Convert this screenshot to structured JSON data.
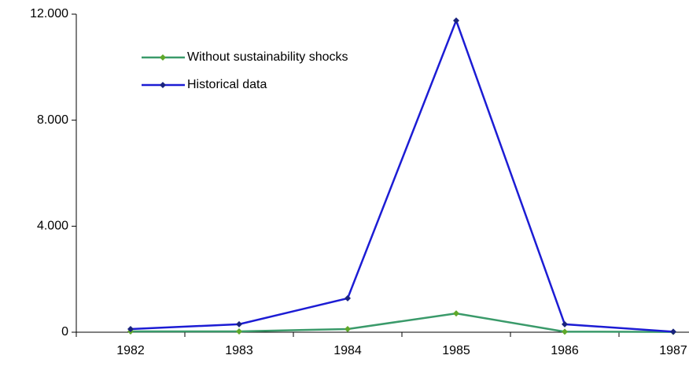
{
  "chart_data": {
    "type": "line",
    "categories": [
      "1982",
      "1983",
      "1984",
      "1985",
      "1986",
      "1987"
    ],
    "series": [
      {
        "name": "Without sustainability shocks",
        "color": "#3a9a6a",
        "marker_color": "#5fa82a",
        "values": [
          30,
          30,
          120,
          710,
          20,
          10
        ]
      },
      {
        "name": "Historical data",
        "color": "#1c1cd4",
        "marker_color": "#1a237e",
        "values": [
          120,
          300,
          1280,
          11760,
          300,
          20
        ]
      }
    ],
    "ylim": [
      0,
      12000
    ],
    "yticks": [
      0,
      {
        "value": 4000,
        "label": "4.000"
      },
      {
        "value": 8000,
        "label": "8.000"
      },
      {
        "value": 12000,
        "label": "12.000"
      }
    ],
    "legend": "upper left"
  }
}
